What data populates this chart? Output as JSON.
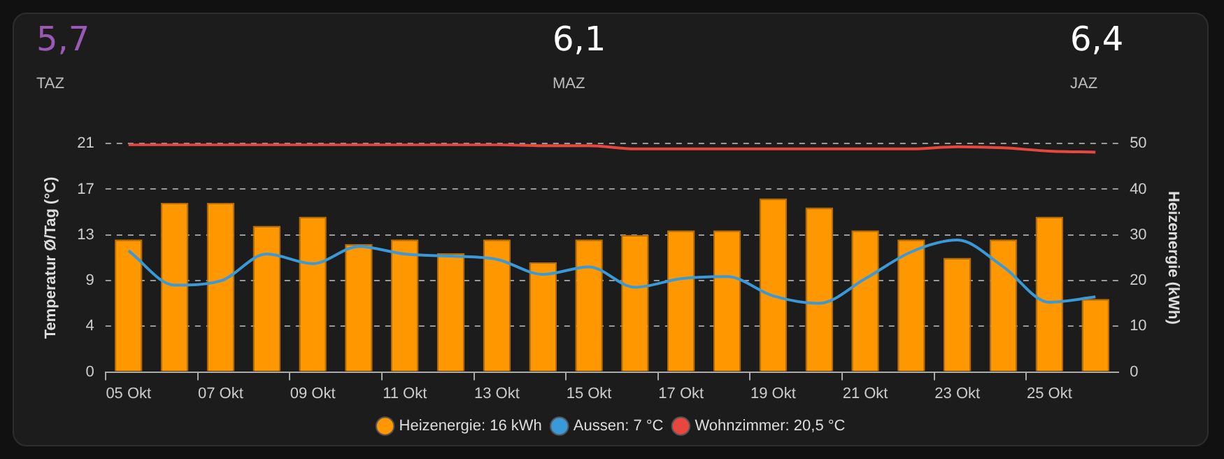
{
  "chart_data": {
    "type": "bar",
    "annotations": [
      "5,7",
      "TAZ",
      "6,1",
      "MAZ",
      "6,4",
      "JAZ"
    ],
    "ylabel": "Temperatur Ø/Tag (°C)",
    "y2label": "Heizenergie (kWh)",
    "categories": [
      "05 Okt",
      null,
      "07 Okt",
      null,
      "09 Okt",
      null,
      "11 Okt",
      null,
      "13 Okt",
      null,
      "15 Okt",
      null,
      "17 Okt",
      null,
      "19 Okt",
      null,
      "21 Okt",
      null,
      "23 Okt",
      null,
      "25 Okt",
      null
    ],
    "series": [
      {
        "name": "Heizenergie: 16 kWh",
        "type": "bar",
        "axis": "y2",
        "color": "#ff9800",
        "values": [
          29,
          37,
          37,
          32,
          34,
          28,
          29,
          26,
          29,
          24,
          29,
          30,
          31,
          31,
          38,
          36,
          31,
          29,
          25,
          29,
          34,
          16
        ]
      },
      {
        "name": "Aussen: 7 °C",
        "type": "line",
        "axis": "y",
        "color": "#3a99d8",
        "values": [
          11.3,
          8.1,
          8.5,
          11.0,
          10.1,
          11.7,
          11.0,
          10.8,
          10.5,
          9.1,
          9.8,
          7.9,
          8.7,
          8.9,
          7.1,
          6.4,
          8.7,
          11.2,
          12.3,
          9.8,
          6.5,
          7.0
        ]
      },
      {
        "name": "Wohnzimmer: 20,5 °C",
        "type": "line",
        "axis": "y",
        "color": "#e8473f",
        "values": [
          21.2,
          21.2,
          21.2,
          21.2,
          21.2,
          21.2,
          21.2,
          21.2,
          21.2,
          21.1,
          21.1,
          20.8,
          20.8,
          20.8,
          20.8,
          20.8,
          20.8,
          20.8,
          21.0,
          20.9,
          20.6,
          20.5
        ]
      }
    ],
    "ylim": [
      0,
      21.3
    ],
    "yticks": [
      0,
      {
        "value": 4.26,
        "label": "4"
      },
      {
        "value": 8.52,
        "label": "9"
      },
      {
        "value": 12.78,
        "label": "13"
      },
      {
        "value": 17.04,
        "label": "17"
      },
      {
        "value": 21.3,
        "label": "21"
      }
    ],
    "y2lim": [
      0,
      50
    ],
    "y2ticks": [
      0,
      10,
      20,
      30,
      40,
      50
    ],
    "grid": "y2",
    "legend": "bottom",
    "marker": "none",
    "line_style": "solid"
  }
}
